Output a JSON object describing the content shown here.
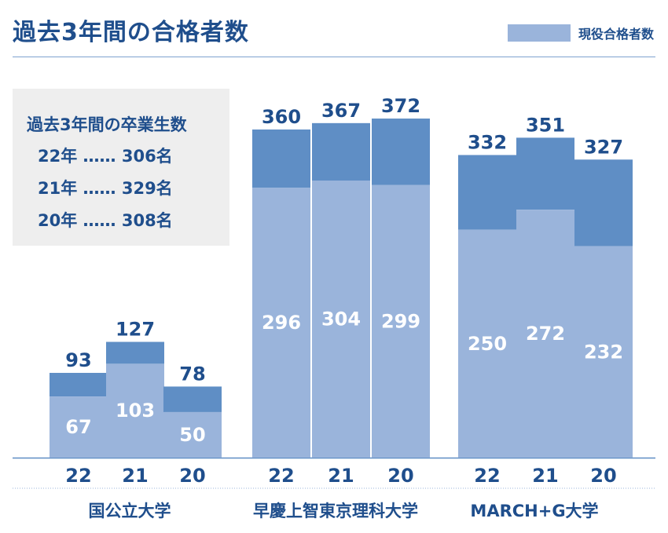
{
  "title": "過去3年間の合格者数",
  "legend": {
    "label": "現役合格者数"
  },
  "graduates": {
    "title": "過去3年間の卒業生数",
    "rows": [
      "22年 …… 306名",
      "21年 …… 329名",
      "20年 …… 308名"
    ]
  },
  "colors": {
    "current": "#9ab4db",
    "total": "#5f8ec5",
    "text": "#1f4e8c"
  },
  "chart_data": {
    "type": "bar",
    "stacked": true,
    "groups": [
      {
        "name": "国公立大学",
        "years": [
          "22",
          "21",
          "20"
        ],
        "totals": [
          93,
          127,
          78
        ],
        "current": [
          67,
          103,
          50
        ]
      },
      {
        "name": "早慶上智東京理科大学",
        "years": [
          "22",
          "21",
          "20"
        ],
        "totals": [
          360,
          367,
          372
        ],
        "current": [
          296,
          304,
          299
        ]
      },
      {
        "name": "MARCH+G大学",
        "years": [
          "22",
          "21",
          "20"
        ],
        "totals": [
          332,
          351,
          327
        ],
        "current": [
          250,
          272,
          232
        ]
      }
    ],
    "series": [
      {
        "name": "現役合格者数",
        "key": "current"
      }
    ]
  }
}
